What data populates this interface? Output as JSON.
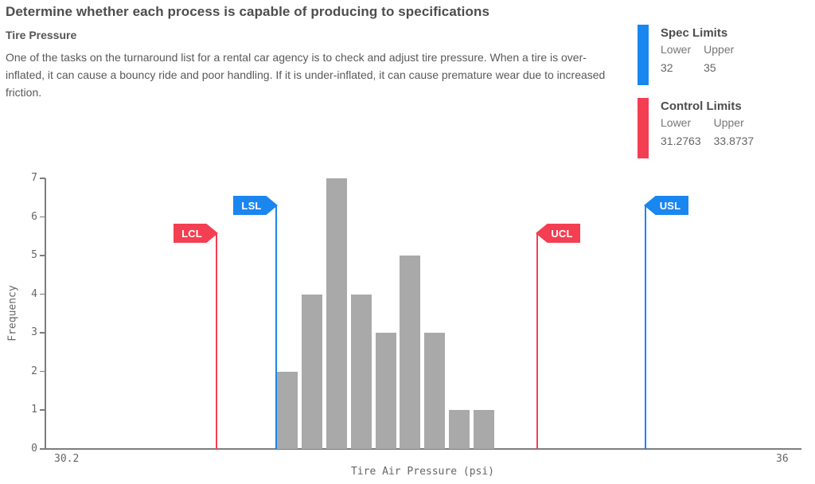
{
  "header": {
    "title": "Determine whether each process is capable of producing to specifications",
    "subtitle": "Tire Pressure",
    "description": "One of the tasks on the turnaround list for a rental car agency is to check and adjust tire pressure. When a tire is over-inflated, it can cause a bouncy ride and poor handling. If it is under-inflated, it can cause premature wear due to increased friction."
  },
  "legend": {
    "spec": {
      "title": "Spec Limits",
      "lower_label": "Lower",
      "upper_label": "Upper",
      "lower_value": "32",
      "upper_value": "35",
      "color": "#1a86f0"
    },
    "control": {
      "title": "Control Limits",
      "lower_label": "Lower",
      "upper_label": "Upper",
      "lower_value": "31.2763",
      "upper_value": "33.8737",
      "color": "#f43e52"
    }
  },
  "chart_data": {
    "type": "bar",
    "title": "",
    "xlabel": "Tire Air Pressure (psi)",
    "ylabel": "Frequency",
    "xlim": [
      30.2,
      36
    ],
    "ylim": [
      0,
      7
    ],
    "x_tick_labels": [
      "30.2",
      "36"
    ],
    "y_ticks": [
      0,
      1,
      2,
      3,
      4,
      5,
      6,
      7
    ],
    "grid": false,
    "legend_position": "top-right",
    "bin_start": 32.0,
    "bin_width": 0.2,
    "frequencies": [
      2,
      4,
      7,
      4,
      3,
      5,
      3,
      1,
      1
    ],
    "bar_color": "#a9a9a9",
    "limit_lines": [
      {
        "label": "LCL",
        "value": 31.2763,
        "kind": "control-lower",
        "color": "#f43e52"
      },
      {
        "label": "LSL",
        "value": 32,
        "kind": "spec-lower",
        "color": "#1a86f0"
      },
      {
        "label": "UCL",
        "value": 33.8737,
        "kind": "control-upper",
        "color": "#f43e52"
      },
      {
        "label": "USL",
        "value": 35,
        "kind": "spec-upper",
        "color": "#1a86f0"
      }
    ]
  }
}
